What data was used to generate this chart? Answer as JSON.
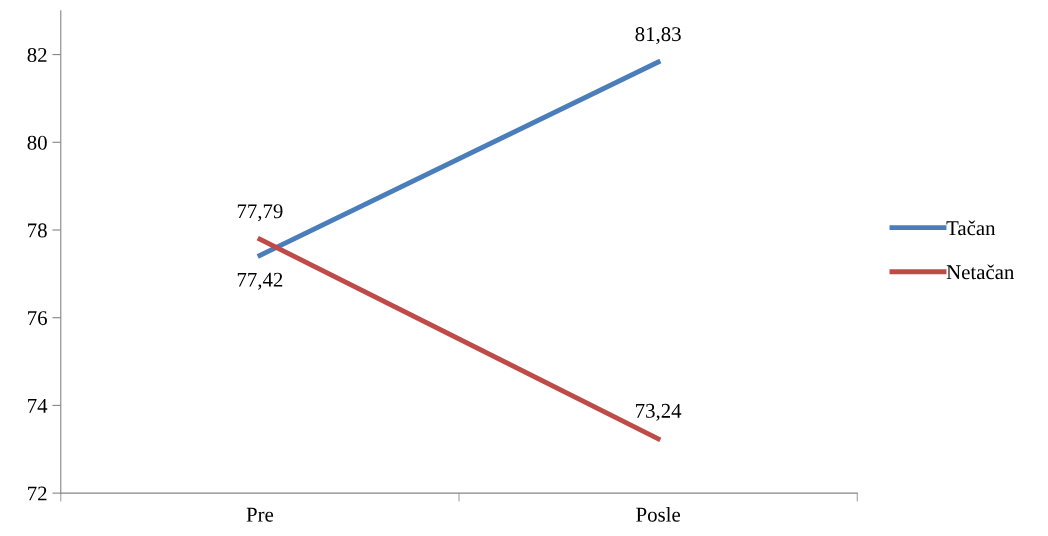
{
  "chart_data": {
    "type": "line",
    "categories": [
      "Pre",
      "Posle"
    ],
    "series": [
      {
        "name": "Tačan",
        "color": "#4a7ebb",
        "values": [
          77.42,
          81.83
        ],
        "value_labels": [
          "77,42",
          "81,83"
        ]
      },
      {
        "name": "Netačan",
        "color": "#be4b48",
        "values": [
          77.79,
          73.24
        ],
        "value_labels": [
          "77,79",
          "73,24"
        ]
      }
    ],
    "ylim": [
      72,
      83
    ],
    "yticks": [
      72,
      74,
      76,
      78,
      80,
      82
    ],
    "grid": false,
    "legend": "right",
    "marker": "none",
    "line_style": "solid"
  }
}
